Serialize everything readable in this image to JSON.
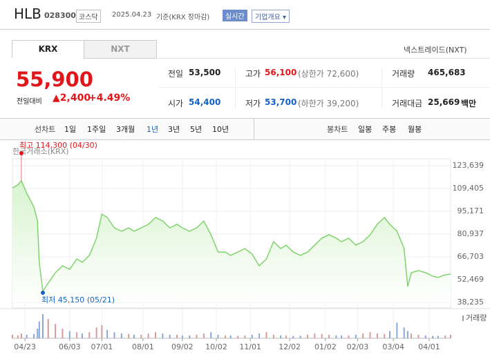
{
  "header": {
    "name": "HLB",
    "code": "028300",
    "market": "코스닥",
    "date": "2025.04.23",
    "basis": "기준(KRX 장마감)",
    "realtime": "실시간",
    "overview": "기업개요"
  },
  "tabs": [
    "KRX",
    "NXT"
  ],
  "nxt_link": "넥스트레이드(NXT)",
  "price": {
    "current": "55,900",
    "change_label": "전일대비",
    "change": "2,400",
    "change_pct": "+4.49%"
  },
  "stats": [
    {
      "label": "전일",
      "value": "53,500",
      "color": "#222222"
    },
    {
      "label": "고가",
      "value": "56,100",
      "extra": "(상한가 72,600)",
      "color": "#e0161b"
    },
    {
      "label": "거래량",
      "value": "465,683",
      "color": "#222222"
    },
    {
      "label": "시가",
      "value": "54,400",
      "color": "#1261c4"
    },
    {
      "label": "저가",
      "value": "53,700",
      "extra": "(하한가 39,200)",
      "color": "#1261c4"
    },
    {
      "label": "거래대금",
      "value": "25,669",
      "unit": "백만",
      "color": "#222222"
    }
  ],
  "periods": {
    "label": "선차트",
    "items": [
      "1일",
      "1주일",
      "3개월",
      "1년",
      "3년",
      "5년",
      "10년"
    ],
    "selected": 3
  },
  "candles": {
    "label": "봉차트",
    "items": [
      "일봉",
      "주봉",
      "월봉"
    ]
  },
  "chart_data": {
    "type": "line",
    "title": "한국거래소(KRX)",
    "color": "#7ed36a",
    "fill": "#d8f3cf",
    "x": [
      0,
      3,
      5,
      8,
      12,
      14,
      15,
      17,
      20,
      24,
      28,
      32,
      36,
      39,
      43,
      47,
      50,
      53,
      57,
      61,
      65,
      68,
      72,
      76,
      80,
      84,
      88,
      92,
      95,
      99,
      103,
      107,
      111,
      115,
      119,
      122,
      126,
      130,
      134,
      138,
      142,
      146,
      150,
      153,
      157,
      161,
      165,
      169,
      173,
      177,
      181,
      184,
      188,
      192,
      196,
      200,
      204,
      208,
      211,
      215,
      219,
      221,
      223,
      227,
      231,
      235,
      238,
      242,
      245
    ],
    "values": [
      109800,
      111600,
      114300,
      106400,
      97800,
      89100,
      63300,
      45150,
      50300,
      56800,
      61100,
      58900,
      65400,
      63300,
      67600,
      78400,
      93400,
      91300,
      84800,
      82700,
      84800,
      82700,
      84800,
      87000,
      91300,
      89100,
      84800,
      87000,
      84800,
      82700,
      84800,
      89100,
      80500,
      69700,
      69700,
      67600,
      69700,
      71900,
      68400,
      61100,
      65400,
      76200,
      71900,
      74000,
      69700,
      67600,
      69700,
      74000,
      78400,
      80500,
      78400,
      76200,
      78400,
      74000,
      76200,
      80500,
      87000,
      91300,
      87000,
      82700,
      71900,
      48200,
      56800,
      58100,
      56800,
      54600,
      53800,
      55500,
      55900
    ],
    "volume": [
      15,
      12,
      20,
      15,
      18,
      40,
      70,
      100,
      80,
      60,
      40,
      30,
      25,
      20,
      25,
      45,
      55,
      35,
      25,
      20,
      18,
      15,
      15,
      20,
      25,
      20,
      15,
      15,
      12,
      12,
      15,
      20,
      25,
      15,
      12,
      12,
      10,
      12,
      15,
      20,
      25,
      15,
      12,
      12,
      10,
      10,
      15,
      20,
      18,
      15,
      12,
      12,
      12,
      15,
      20,
      25,
      20,
      18,
      30,
      65,
      45,
      30,
      20,
      15,
      12,
      10,
      10,
      12,
      15
    ],
    "volume_ylim": [
      0,
      100
    ],
    "volume_label": "거래량",
    "xlim": [
      0,
      245
    ],
    "xticks": [
      {
        "value": 7,
        "label": "04/23"
      },
      {
        "value": 32,
        "label": "06/03"
      },
      {
        "value": 50,
        "label": "07/01"
      },
      {
        "value": 73,
        "label": "08/01"
      },
      {
        "value": 95,
        "label": "09/02"
      },
      {
        "value": 114,
        "label": "10/02"
      },
      {
        "value": 133,
        "label": "11/01"
      },
      {
        "value": 155,
        "label": "12/02"
      },
      {
        "value": 175,
        "label": "01/02"
      },
      {
        "value": 193,
        "label": "02/03"
      },
      {
        "value": 213,
        "label": "03/04"
      },
      {
        "value": 233,
        "label": "04/01"
      }
    ],
    "ylim": [
      38235,
      123639
    ],
    "yticks": [
      {
        "value": 123639,
        "label": "123,639"
      },
      {
        "value": 109405,
        "label": "109,405"
      },
      {
        "value": 95171,
        "label": "95,171"
      },
      {
        "value": 80937,
        "label": "80,937"
      },
      {
        "value": 66703,
        "label": "66,703"
      },
      {
        "value": 52469,
        "label": "52,469"
      },
      {
        "value": 38235,
        "label": "38,235"
      }
    ],
    "grid": true,
    "high_label": "최고 114,300 (04/30)",
    "low_label": "최저 45,150 (05/21)",
    "high_color": "#e0161b",
    "low_color": "#1261c4"
  }
}
